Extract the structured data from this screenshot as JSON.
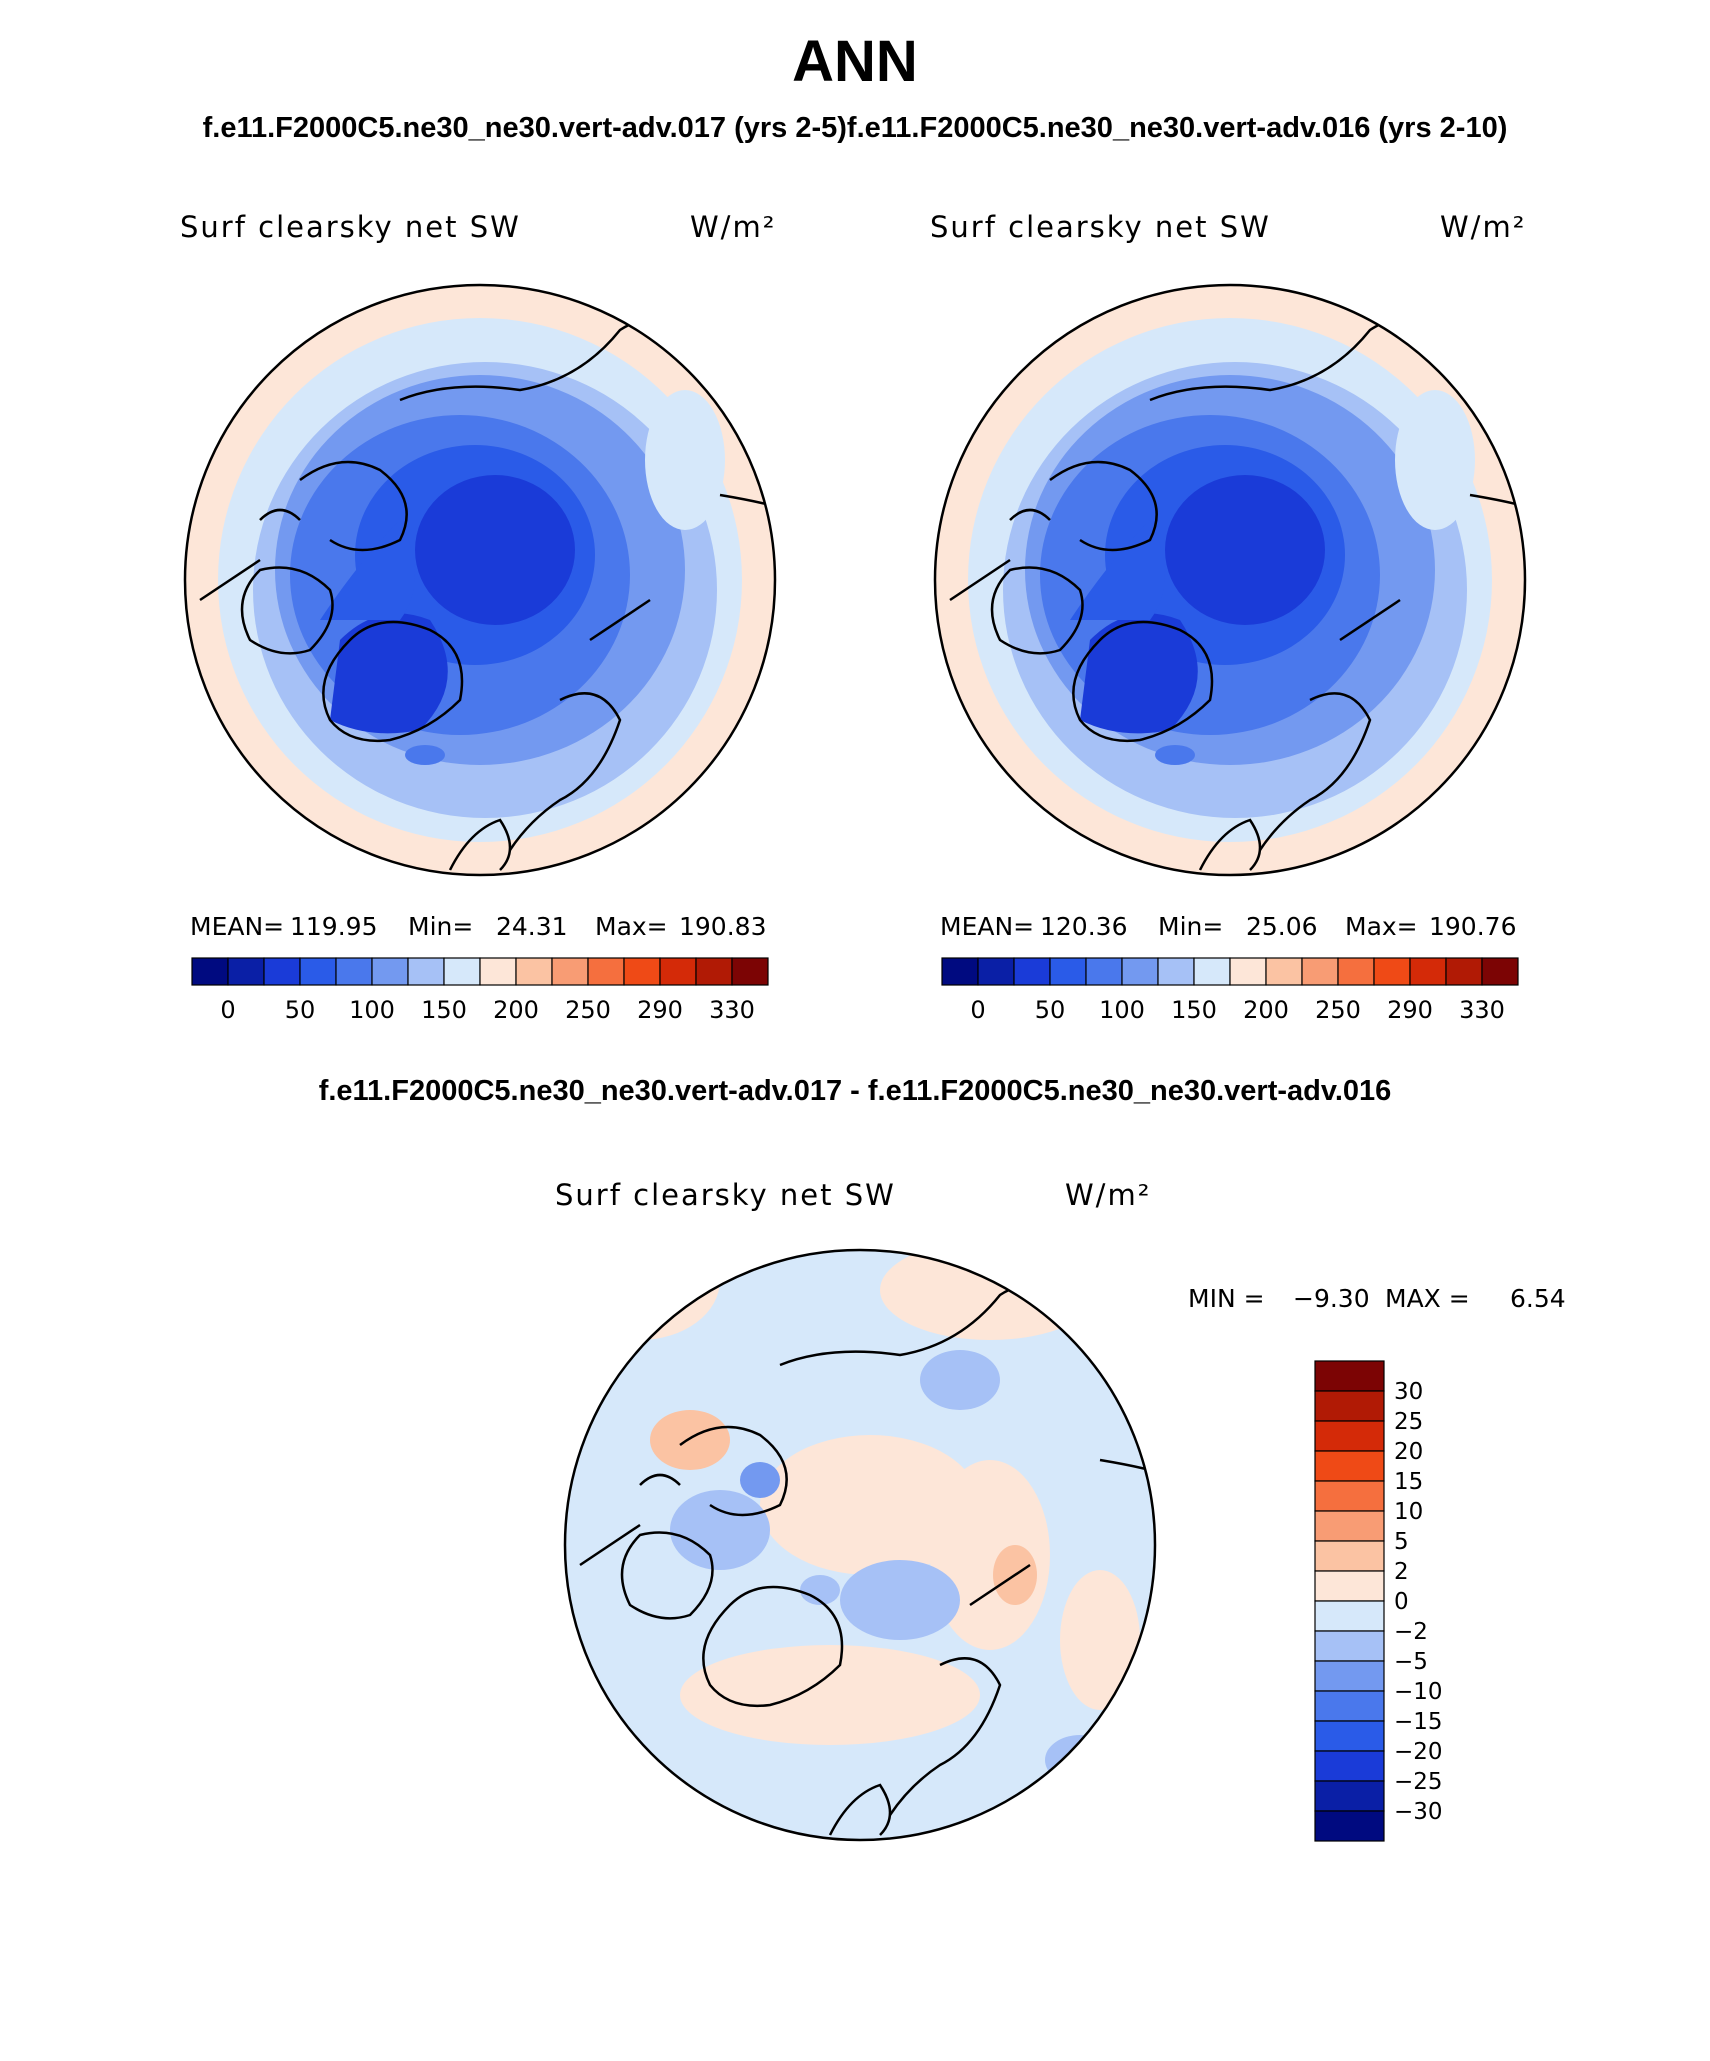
{
  "header": {
    "title": "ANN",
    "case_line": "f.e11.F2000C5.ne30_ne30.vert-adv.017 (yrs 2-5)f.e11.F2000C5.ne30_ne30.vert-adv.016 (yrs 2-10)",
    "diff_title": "f.e11.F2000C5.ne30_ne30.vert-adv.017 - f.e11.F2000C5.ne30_ne30.vert-adv.016"
  },
  "panels": [
    {
      "variable": "Surf clearsky net SW",
      "units": "W/m²",
      "stats": {
        "mean_label": "MEAN=",
        "mean": "119.95",
        "min_label": "Min=",
        "min": "24.31",
        "max_label": "Max=",
        "max": "190.83"
      }
    },
    {
      "variable": "Surf clearsky net SW",
      "units": "W/m²",
      "stats": {
        "mean_label": "MEAN=",
        "mean": "120.36",
        "min_label": "Min=",
        "min": "25.06",
        "max_label": "Max=",
        "max": "190.76"
      }
    }
  ],
  "diff_panel": {
    "variable": "Surf clearsky net SW",
    "units": "W/m²",
    "min_label": "MIN =",
    "min": "−9.30",
    "max_label": "MAX =",
    "max": "6.54"
  },
  "colorbar_horizontal": {
    "labels": [
      "0",
      "50",
      "100",
      "150",
      "200",
      "250",
      "290",
      "330"
    ],
    "colors": [
      "#000a80",
      "#0a1fa6",
      "#1a3bd8",
      "#2a5be8",
      "#4a78ec",
      "#7399f0",
      "#a6c1f6",
      "#d6e8fa",
      "#fde6d8",
      "#fbc3a3",
      "#f89c74",
      "#f56f3e",
      "#ef4a16",
      "#d42a08",
      "#b11a05",
      "#7c0404"
    ]
  },
  "colorbar_vertical": {
    "labels": [
      "30",
      "25",
      "20",
      "15",
      "10",
      "5",
      "2",
      "0",
      "−2",
      "−5",
      "−10",
      "−15",
      "−20",
      "−25",
      "−30"
    ],
    "colors": [
      "#7c0404",
      "#b11a05",
      "#d42a08",
      "#ef4a16",
      "#f56f3e",
      "#f89c74",
      "#fbc3a3",
      "#fde6d8",
      "#d6e8fa",
      "#a6c1f6",
      "#7399f0",
      "#4a78ec",
      "#2a5be8",
      "#1a3bd8",
      "#0a1fa6",
      "#000a80"
    ]
  }
}
